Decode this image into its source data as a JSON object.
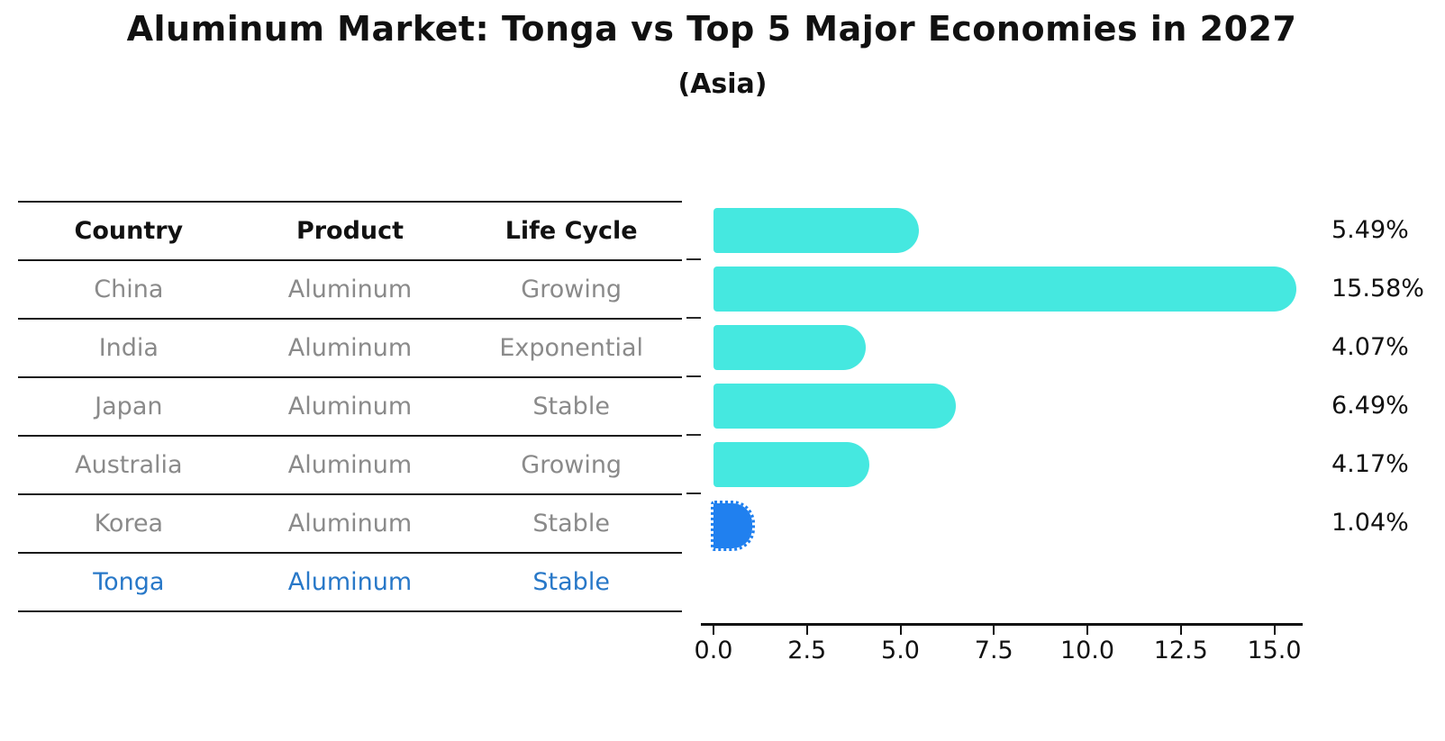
{
  "title": "Aluminum Market: Tonga vs Top 5 Major Economies in 2027",
  "subtitle": "(Asia)",
  "table": {
    "headers": [
      "Country",
      "Product",
      "Life Cycle"
    ],
    "rows": [
      {
        "country": "China",
        "product": "Aluminum",
        "life_cycle": "Growing",
        "highlight": false
      },
      {
        "country": "India",
        "product": "Aluminum",
        "life_cycle": "Exponential",
        "highlight": false
      },
      {
        "country": "Japan",
        "product": "Aluminum",
        "life_cycle": "Stable",
        "highlight": false
      },
      {
        "country": "Australia",
        "product": "Aluminum",
        "life_cycle": "Growing",
        "highlight": false
      },
      {
        "country": "Korea",
        "product": "Aluminum",
        "life_cycle": "Stable",
        "highlight": false
      },
      {
        "country": "Tonga",
        "product": "Aluminum",
        "life_cycle": "Stable",
        "highlight": true
      }
    ]
  },
  "chart_data": {
    "type": "bar",
    "orientation": "horizontal",
    "title": "Aluminum Market: Tonga vs Top 5 Major Economies in 2027",
    "subtitle": "(Asia)",
    "categories": [
      "China",
      "India",
      "Japan",
      "Australia",
      "Korea",
      "Tonga"
    ],
    "values": [
      5.49,
      15.58,
      4.07,
      6.49,
      4.17,
      1.04
    ],
    "value_labels": [
      "5.49%",
      "15.58%",
      "4.07%",
      "6.49%",
      "4.17%",
      "1.04%"
    ],
    "highlight_index": 5,
    "x_ticks": [
      0.0,
      2.5,
      5.0,
      7.5,
      10.0,
      12.5,
      15.0
    ],
    "x_tick_labels": [
      "0.0",
      "2.5",
      "5.0",
      "7.5",
      "10.0",
      "12.5",
      "15.0"
    ],
    "xlim": [
      0,
      15.76
    ],
    "grid": false,
    "legend": false,
    "colors": {
      "bar": "#45e8e0",
      "highlight_bar": "#2080ef",
      "highlight_text": "#2878c8",
      "cell_text": "#8a8a8a",
      "header_text": "#111111",
      "axis": "#111111"
    }
  }
}
